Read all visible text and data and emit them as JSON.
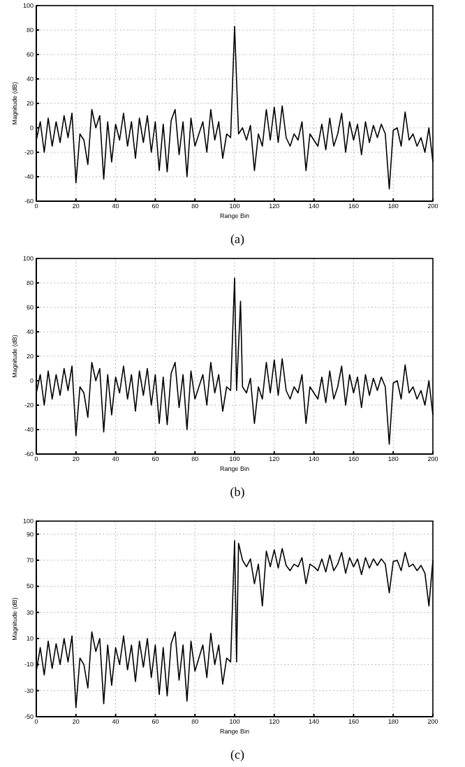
{
  "chart_data": [
    {
      "type": "line",
      "xlabel": "Range Bin",
      "ylabel": "Magnitude (dB)",
      "annotations": [
        "(a)"
      ],
      "xlim": [
        0,
        200
      ],
      "xticks": [
        0,
        20,
        40,
        60,
        80,
        100,
        120,
        140,
        160,
        180,
        200
      ],
      "ylim": [
        -60,
        100
      ],
      "yticks": [
        -60,
        -40,
        -20,
        0,
        20,
        40,
        60,
        80,
        100
      ],
      "grid": true,
      "line_style": "solid",
      "series": [
        {
          "color": "#000000",
          "x": [
            0,
            2,
            4,
            6,
            8,
            10,
            12,
            14,
            16,
            18,
            20,
            22,
            24,
            26,
            28,
            30,
            32,
            34,
            36,
            38,
            40,
            42,
            44,
            46,
            48,
            50,
            52,
            54,
            56,
            58,
            60,
            62,
            64,
            66,
            68,
            70,
            72,
            74,
            76,
            78,
            80,
            82,
            84,
            86,
            88,
            90,
            92,
            94,
            96,
            98,
            100,
            102,
            104,
            106,
            108,
            110,
            112,
            114,
            116,
            118,
            120,
            122,
            124,
            126,
            128,
            130,
            132,
            134,
            136,
            138,
            140,
            142,
            144,
            146,
            148,
            150,
            152,
            154,
            156,
            158,
            160,
            162,
            164,
            166,
            168,
            170,
            172,
            174,
            176,
            178,
            180,
            182,
            184,
            186,
            188,
            190,
            192,
            194,
            196,
            198,
            200
          ],
          "values": [
            -10,
            5,
            -20,
            8,
            -15,
            5,
            -12,
            10,
            -8,
            12,
            -45,
            -5,
            -10,
            -30,
            15,
            0,
            10,
            -42,
            5,
            -28,
            3,
            -10,
            12,
            -15,
            5,
            -25,
            8,
            -12,
            10,
            -20,
            5,
            -35,
            3,
            -36,
            6,
            15,
            -22,
            5,
            -40,
            8,
            -15,
            -5,
            5,
            -20,
            15,
            -10,
            5,
            -25,
            -5,
            -8,
            83,
            -5,
            0,
            -10,
            2,
            -35,
            -5,
            -15,
            15,
            -10,
            17,
            -12,
            18,
            -8,
            -15,
            -5,
            -10,
            5,
            -35,
            -5,
            -10,
            -15,
            3,
            -18,
            8,
            -15,
            -5,
            12,
            -20,
            5,
            -10,
            3,
            -22,
            5,
            -12,
            2,
            -8,
            3,
            -5,
            -50,
            -2,
            0,
            -15,
            13,
            -10,
            -5,
            -15,
            -8,
            -20,
            0,
            -28
          ]
        }
      ]
    },
    {
      "type": "line",
      "xlabel": "Range Bin",
      "ylabel": "Magnitude (dB)",
      "annotations": [
        "(b)"
      ],
      "xlim": [
        0,
        200
      ],
      "xticks": [
        0,
        20,
        40,
        60,
        80,
        100,
        120,
        140,
        160,
        180,
        200
      ],
      "ylim": [
        -60,
        100
      ],
      "yticks": [
        -60,
        -40,
        -20,
        0,
        20,
        40,
        60,
        80,
        100
      ],
      "grid": true,
      "line_style": "solid",
      "series": [
        {
          "color": "#000000",
          "x": [
            0,
            2,
            4,
            6,
            8,
            10,
            12,
            14,
            16,
            18,
            20,
            22,
            24,
            26,
            28,
            30,
            32,
            34,
            36,
            38,
            40,
            42,
            44,
            46,
            48,
            50,
            52,
            54,
            56,
            58,
            60,
            62,
            64,
            66,
            68,
            70,
            72,
            74,
            76,
            78,
            80,
            82,
            84,
            86,
            88,
            90,
            92,
            94,
            96,
            98,
            100,
            101,
            103,
            104,
            106,
            108,
            110,
            112,
            114,
            116,
            118,
            120,
            122,
            124,
            126,
            128,
            130,
            132,
            134,
            136,
            138,
            140,
            142,
            144,
            146,
            148,
            150,
            152,
            154,
            156,
            158,
            160,
            162,
            164,
            166,
            168,
            170,
            172,
            174,
            176,
            178,
            180,
            182,
            184,
            186,
            188,
            190,
            192,
            194,
            196,
            198,
            200
          ],
          "values": [
            -10,
            5,
            -20,
            8,
            -15,
            5,
            -12,
            10,
            -8,
            12,
            -45,
            -5,
            -10,
            -30,
            15,
            0,
            10,
            -42,
            5,
            -28,
            3,
            -10,
            12,
            -15,
            5,
            -25,
            8,
            -12,
            10,
            -20,
            5,
            -35,
            3,
            -36,
            6,
            15,
            -22,
            5,
            -40,
            8,
            -15,
            -5,
            5,
            -20,
            15,
            -10,
            5,
            -25,
            -5,
            -8,
            84,
            -8,
            65,
            -5,
            -10,
            2,
            -35,
            -5,
            -15,
            15,
            -10,
            17,
            -12,
            18,
            -8,
            -15,
            -5,
            -10,
            5,
            -35,
            -5,
            -10,
            -15,
            3,
            -18,
            8,
            -15,
            -5,
            12,
            -20,
            5,
            -10,
            3,
            -22,
            5,
            -12,
            2,
            -8,
            3,
            -5,
            -52,
            -2,
            0,
            -15,
            13,
            -10,
            -5,
            -15,
            -8,
            -20,
            0,
            -28
          ]
        }
      ]
    },
    {
      "type": "line",
      "xlabel": "Range Bin",
      "ylabel": "Magnitude (dB)",
      "annotations": [
        "(c)"
      ],
      "xlim": [
        0,
        200
      ],
      "xticks": [
        0,
        20,
        40,
        60,
        80,
        100,
        120,
        140,
        160,
        180,
        200
      ],
      "ylim": [
        -50,
        100
      ],
      "yticks": [
        -50,
        -30,
        -10,
        10,
        30,
        50,
        70,
        90,
        100
      ],
      "grid": true,
      "line_style": "solid",
      "series": [
        {
          "color": "#000000",
          "x": [
            0,
            2,
            4,
            6,
            8,
            10,
            12,
            14,
            16,
            18,
            20,
            22,
            24,
            26,
            28,
            30,
            32,
            34,
            36,
            38,
            40,
            42,
            44,
            46,
            48,
            50,
            52,
            54,
            56,
            58,
            60,
            62,
            64,
            66,
            68,
            70,
            72,
            74,
            76,
            78,
            80,
            82,
            84,
            86,
            88,
            90,
            92,
            94,
            96,
            98,
            100,
            101,
            102,
            104,
            106,
            108,
            110,
            112,
            114,
            116,
            118,
            120,
            122,
            124,
            126,
            128,
            130,
            132,
            134,
            136,
            138,
            140,
            142,
            144,
            146,
            148,
            150,
            152,
            154,
            156,
            158,
            160,
            162,
            164,
            166,
            168,
            170,
            172,
            174,
            176,
            178,
            180,
            182,
            184,
            186,
            188,
            190,
            192,
            194,
            196,
            198,
            200
          ],
          "values": [
            -15,
            3,
            -18,
            8,
            -13,
            6,
            -10,
            10,
            -8,
            12,
            -43,
            -5,
            -10,
            -28,
            15,
            0,
            10,
            -40,
            5,
            -26,
            3,
            -10,
            12,
            -14,
            5,
            -23,
            8,
            -12,
            10,
            -20,
            5,
            -33,
            3,
            -34,
            6,
            15,
            -22,
            5,
            -38,
            8,
            -15,
            -5,
            5,
            -20,
            14,
            -10,
            5,
            -25,
            -5,
            -8,
            85,
            -8,
            83,
            70,
            65,
            71,
            52,
            67,
            35,
            77,
            65,
            78,
            64,
            79,
            66,
            62,
            67,
            65,
            72,
            52,
            67,
            65,
            62,
            71,
            61,
            74,
            62,
            67,
            76,
            60,
            72,
            65,
            71,
            59,
            72,
            64,
            71,
            66,
            71,
            67,
            45,
            69,
            70,
            62,
            76,
            65,
            67,
            62,
            66,
            60,
            35,
            70
          ]
        }
      ]
    }
  ]
}
